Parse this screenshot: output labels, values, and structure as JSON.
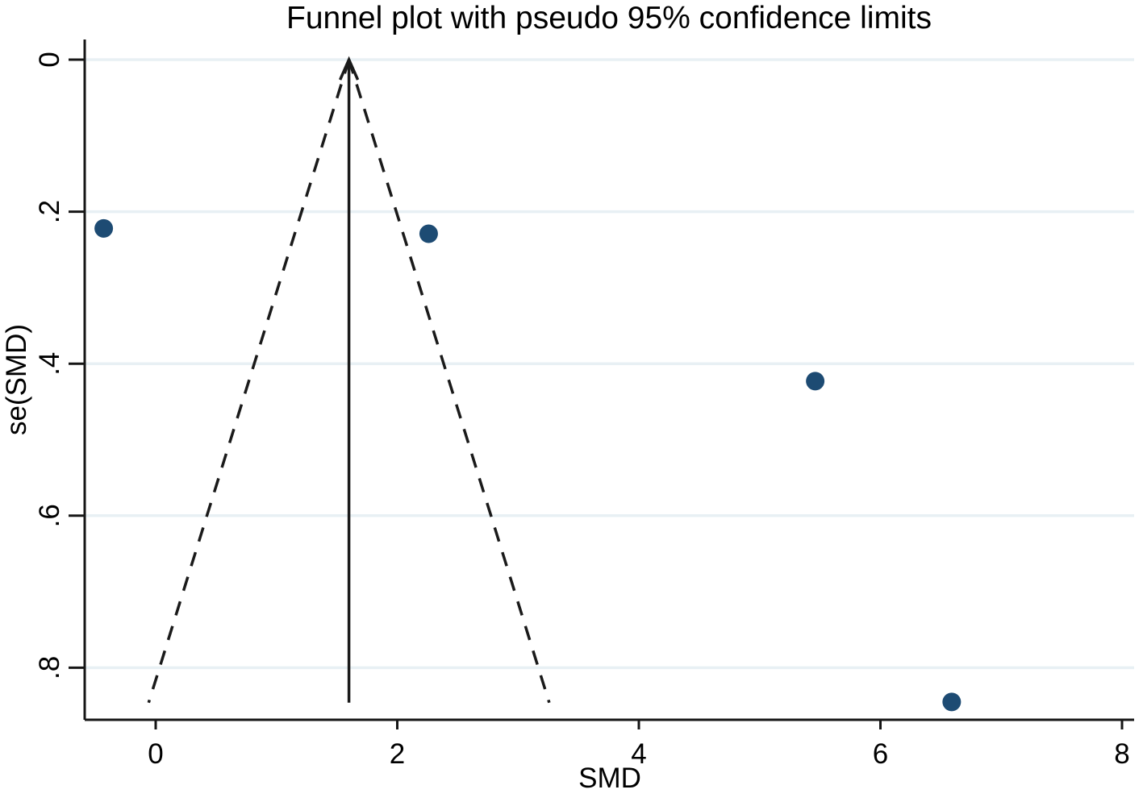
{
  "figure": {
    "title": "Funnel plot with pseudo 95% confidence limits"
  },
  "chart_data": {
    "type": "scatter",
    "subtype": "funnel-plot",
    "title": "Funnel plot with pseudo 95% confidence limits",
    "xlabel": "SMD",
    "ylabel": "se(SMD)",
    "x_ticks": [
      0,
      2,
      4,
      6,
      8
    ],
    "x_tick_labels": [
      "0",
      "2",
      "4",
      "6",
      "8"
    ],
    "y_ticks": [
      0,
      0.2,
      0.4,
      0.6,
      0.8
    ],
    "y_tick_labels": [
      "0",
      ".2",
      ".4",
      ".6",
      ".8"
    ],
    "xlim": [
      -0.59,
      8.08
    ],
    "ylim": [
      0,
      0.868
    ],
    "y_axis_inverted": true,
    "grid": "horizontal-only",
    "legend": "none",
    "points": [
      {
        "smd": -0.43,
        "se": 0.222
      },
      {
        "smd": 2.26,
        "se": 0.229
      },
      {
        "smd": 5.46,
        "se": 0.423
      },
      {
        "smd": 6.59,
        "se": 0.845
      }
    ],
    "center_line": {
      "smd": 1.6,
      "se_from": 0,
      "se_to": 0.846,
      "arrow": "up"
    },
    "pseudo_ci_limits": {
      "center_smd": 1.6,
      "z": 1.96,
      "se_max": 0.846,
      "line_style": "dashed"
    },
    "colors": {
      "point_fill": "#1d4b73",
      "line": "#1a1a1a",
      "axis": "#161616",
      "gridline": "#e8f0f4",
      "text": "#000000",
      "background": "#ffffff"
    }
  }
}
